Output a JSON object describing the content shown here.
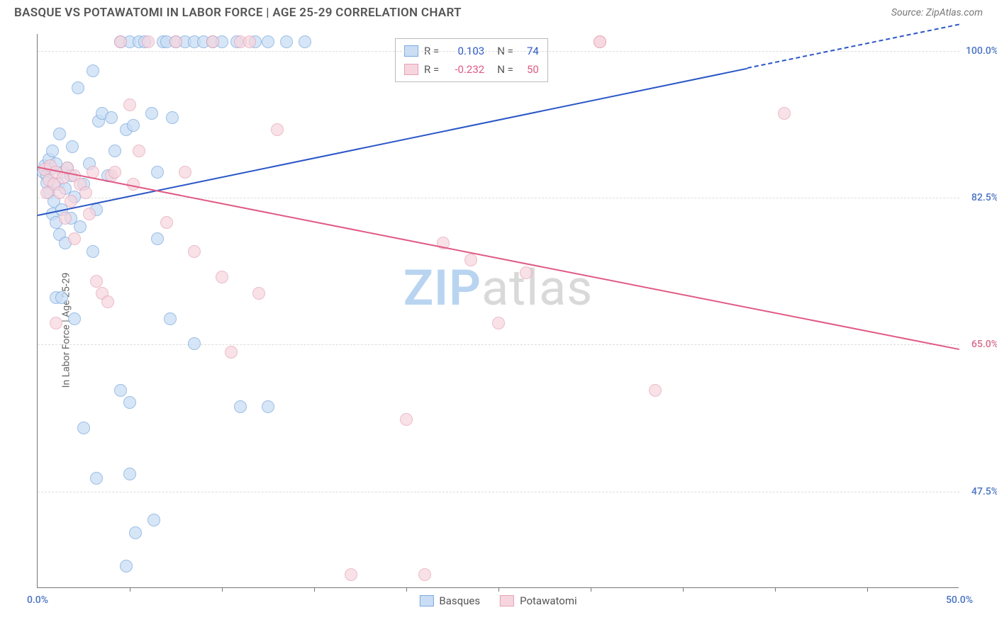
{
  "header": {
    "title": "BASQUE VS POTAWATOMI IN LABOR FORCE | AGE 25-29 CORRELATION CHART",
    "source_prefix": "Source: ",
    "source_name": "ZipAtlas.com"
  },
  "watermark": {
    "left": "ZIP",
    "right": "atlas",
    "left_color": "#b8d4f0",
    "right_color": "#d9d9d9"
  },
  "chart": {
    "type": "scatter",
    "y_axis_label": "In Labor Force | Age 25-29",
    "background_color": "#ffffff",
    "grid_color": "#dddddd",
    "axis_color": "#777777",
    "x_range": [
      0,
      50
    ],
    "y_range": [
      36,
      102
    ],
    "x_labels": [
      {
        "v": 0,
        "t": "0.0%",
        "color": "#4a73c4"
      },
      {
        "v": 50,
        "t": "50.0%",
        "color": "#4a73c4"
      }
    ],
    "x_ticks": [
      5,
      10,
      15,
      20,
      25,
      30,
      35,
      40,
      45
    ],
    "y_gridlines": [
      {
        "v": 100.0,
        "t": "100.0%",
        "color": "#4a73c4"
      },
      {
        "v": 82.5,
        "t": "82.5%",
        "color": "#4a73c4"
      },
      {
        "v": 65.0,
        "t": "65.0%",
        "color": "#d96a8a"
      },
      {
        "v": 47.5,
        "t": "47.5%",
        "color": "#4a73c4"
      }
    ],
    "series": [
      {
        "name": "Basques",
        "fill": "#c9def5",
        "stroke": "#7ba9dd",
        "line_color": "#2a56c6",
        "dot_r": 9,
        "dot_opacity": 0.75,
        "R": "0.103",
        "N": "74",
        "trend": {
          "x1": 0,
          "y1": 80.5,
          "x2": 38.5,
          "y2": 98.0,
          "x2_dash": 50,
          "y2_dash": 103.2
        },
        "points": [
          [
            0.3,
            85.5
          ],
          [
            0.4,
            86.2
          ],
          [
            0.5,
            85.0
          ],
          [
            0.5,
            84.2
          ],
          [
            0.6,
            87.0
          ],
          [
            0.6,
            83.0
          ],
          [
            0.7,
            85.8
          ],
          [
            0.8,
            88.0
          ],
          [
            0.8,
            80.5
          ],
          [
            0.9,
            82.0
          ],
          [
            1.0,
            86.5
          ],
          [
            1.0,
            79.5
          ],
          [
            1.1,
            84.0
          ],
          [
            1.2,
            90.0
          ],
          [
            1.2,
            78.0
          ],
          [
            1.3,
            81.0
          ],
          [
            1.4,
            85.5
          ],
          [
            1.5,
            77.0
          ],
          [
            1.5,
            83.5
          ],
          [
            1.6,
            86.0
          ],
          [
            1.8,
            80.0
          ],
          [
            1.9,
            88.5
          ],
          [
            2.0,
            82.5
          ],
          [
            2.2,
            95.5
          ],
          [
            2.3,
            79.0
          ],
          [
            2.5,
            84.0
          ],
          [
            2.8,
            86.5
          ],
          [
            3.0,
            97.5
          ],
          [
            3.2,
            81.0
          ],
          [
            3.3,
            91.5
          ],
          [
            3.5,
            92.5
          ],
          [
            3.8,
            85.0
          ],
          [
            4.0,
            92.0
          ],
          [
            4.2,
            88.0
          ],
          [
            4.5,
            101.0
          ],
          [
            4.8,
            90.5
          ],
          [
            5.0,
            101.0
          ],
          [
            5.2,
            91.0
          ],
          [
            5.5,
            101.0
          ],
          [
            5.8,
            101.0
          ],
          [
            6.2,
            92.5
          ],
          [
            6.5,
            85.5
          ],
          [
            6.8,
            101.0
          ],
          [
            7.0,
            101.0
          ],
          [
            7.3,
            92.0
          ],
          [
            7.5,
            101.0
          ],
          [
            8.0,
            101.0
          ],
          [
            8.5,
            101.0
          ],
          [
            9.0,
            101.0
          ],
          [
            9.5,
            101.0
          ],
          [
            10.0,
            101.0
          ],
          [
            10.8,
            101.0
          ],
          [
            11.8,
            101.0
          ],
          [
            12.5,
            101.0
          ],
          [
            13.5,
            101.0
          ],
          [
            14.5,
            101.0
          ],
          [
            2.0,
            68.0
          ],
          [
            2.5,
            55.0
          ],
          [
            3.0,
            76.0
          ],
          [
            4.5,
            59.5
          ],
          [
            5.0,
            58.0
          ],
          [
            5.3,
            42.5
          ],
          [
            6.3,
            44.0
          ],
          [
            6.5,
            77.5
          ],
          [
            7.2,
            68.0
          ],
          [
            8.5,
            65.0
          ],
          [
            11.0,
            57.5
          ],
          [
            12.5,
            57.5
          ],
          [
            5.0,
            49.5
          ],
          [
            3.2,
            49.0
          ],
          [
            1.0,
            70.5
          ],
          [
            1.3,
            70.5
          ],
          [
            1.8,
            85.0
          ],
          [
            4.8,
            38.5
          ]
        ]
      },
      {
        "name": "Potawatomi",
        "fill": "#f6d5de",
        "stroke": "#e6a1b5",
        "line_color": "#e05a84",
        "dot_r": 9,
        "dot_opacity": 0.7,
        "R": "-0.232",
        "N": "50",
        "trend": {
          "x1": 0,
          "y1": 86.2,
          "x2": 50,
          "y2": 64.5
        },
        "points": [
          [
            0.4,
            85.8
          ],
          [
            0.6,
            84.5
          ],
          [
            0.7,
            86.2
          ],
          [
            0.9,
            84.0
          ],
          [
            1.0,
            85.5
          ],
          [
            1.2,
            83.0
          ],
          [
            1.4,
            84.8
          ],
          [
            1.6,
            86.0
          ],
          [
            1.8,
            82.0
          ],
          [
            2.0,
            85.0
          ],
          [
            2.3,
            84.0
          ],
          [
            2.6,
            83.0
          ],
          [
            3.0,
            85.5
          ],
          [
            3.2,
            72.5
          ],
          [
            3.5,
            71.0
          ],
          [
            4.0,
            85.0
          ],
          [
            4.5,
            101.0
          ],
          [
            5.0,
            93.5
          ],
          [
            5.5,
            88.0
          ],
          [
            6.0,
            101.0
          ],
          [
            7.0,
            79.5
          ],
          [
            7.5,
            101.0
          ],
          [
            8.0,
            85.5
          ],
          [
            8.5,
            76.0
          ],
          [
            9.5,
            101.0
          ],
          [
            10.0,
            73.0
          ],
          [
            10.5,
            64.0
          ],
          [
            11.0,
            101.0
          ],
          [
            11.5,
            101.0
          ],
          [
            12.0,
            71.0
          ],
          [
            13.0,
            90.5
          ],
          [
            22.0,
            77.0
          ],
          [
            23.5,
            75.0
          ],
          [
            25.0,
            67.5
          ],
          [
            26.5,
            73.5
          ],
          [
            30.5,
            101.0
          ],
          [
            30.5,
            101.0
          ],
          [
            33.5,
            59.5
          ],
          [
            40.5,
            92.5
          ],
          [
            1.0,
            67.5
          ],
          [
            2.0,
            77.5
          ],
          [
            3.8,
            70.0
          ],
          [
            17.0,
            37.5
          ],
          [
            20.0,
            56.0
          ],
          [
            21.0,
            37.5
          ],
          [
            4.2,
            85.5
          ],
          [
            5.2,
            84.0
          ],
          [
            1.5,
            80.0
          ],
          [
            2.8,
            80.5
          ],
          [
            0.5,
            83.0
          ]
        ]
      }
    ],
    "legend_top": {
      "rows": [
        {
          "swatch_fill": "#c9def5",
          "swatch_stroke": "#7ba9dd",
          "r_label": "R =",
          "r_val": "0.103",
          "r_color": "#2a56c6",
          "n_label": "N =",
          "n_val": "74",
          "n_color": "#2a56c6"
        },
        {
          "swatch_fill": "#f6d5de",
          "swatch_stroke": "#e6a1b5",
          "r_label": "R =",
          "r_val": "-0.232",
          "r_color": "#e05a84",
          "n_label": "N =",
          "n_val": "50",
          "n_color": "#e05a84"
        }
      ]
    },
    "legend_bottom": [
      {
        "swatch_fill": "#c9def5",
        "swatch_stroke": "#7ba9dd",
        "label": "Basques"
      },
      {
        "swatch_fill": "#f6d5de",
        "swatch_stroke": "#e6a1b5",
        "label": "Potawatomi"
      }
    ]
  }
}
